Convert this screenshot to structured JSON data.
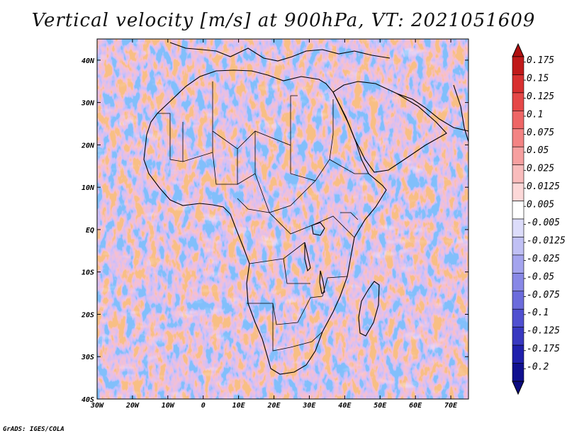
{
  "title": "Vertical velocity [m/s] at 900hPa, VT: 2021051609",
  "credit": "GrADS: IGES/COLA",
  "map": {
    "lon_range": [
      -30,
      75
    ],
    "lat_range": [
      -40,
      45
    ],
    "lon_ticks": [
      "30W",
      "20W",
      "10W",
      "0",
      "10E",
      "20E",
      "30E",
      "40E",
      "50E",
      "60E",
      "70E"
    ],
    "lat_ticks": [
      "40S",
      "30S",
      "20S",
      "10S",
      "EQ",
      "10N",
      "20N",
      "30N",
      "40N"
    ],
    "field": "vertical velocity",
    "colors": {
      "updraft": "#e03030",
      "downdraft": "#4040d0",
      "coast": "#000000"
    }
  },
  "colorbar": {
    "labels": [
      "0.175",
      "0.15",
      "0.125",
      "0.1",
      "0.075",
      "0.05",
      "0.025",
      "0.0125",
      "0.005",
      "-0.005",
      "-0.0125",
      "-0.025",
      "-0.05",
      "-0.075",
      "-0.1",
      "-0.125",
      "-0.175",
      "-0.2"
    ],
    "colors": [
      "#c01a1a",
      "#d83030",
      "#e54848",
      "#ee6666",
      "#f38484",
      "#f6a0a0",
      "#f9bcbc",
      "#fcd8d8",
      "#ffffff",
      "#dcdcfa",
      "#c0c0f4",
      "#a4a4ee",
      "#8888e6",
      "#6c6cdc",
      "#5050d0",
      "#3838c0",
      "#2020ac",
      "#10108f"
    ],
    "top_color": "#b01010",
    "bottom_color": "#0a0a80"
  }
}
